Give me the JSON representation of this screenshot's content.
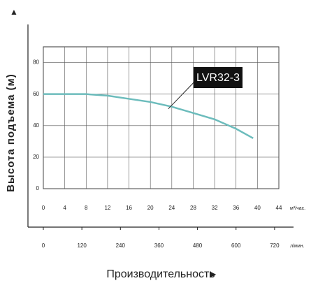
{
  "chart_data": {
    "type": "line",
    "y_label": "Высота подъема (м)",
    "x_label": "Производительность",
    "x_unit": "м³/час.",
    "x2_unit": "л/мин.",
    "xlim": [
      0,
      44
    ],
    "xticks": [
      0,
      4,
      8,
      12,
      16,
      20,
      24,
      28,
      32,
      36,
      40,
      44
    ],
    "x2lim": [
      0,
      733.3
    ],
    "x2ticks": [
      0,
      120,
      240,
      360,
      480,
      600,
      720
    ],
    "ylim": [
      0,
      90
    ],
    "yticks": [
      0,
      20,
      40,
      60,
      80
    ],
    "grid": true,
    "series": [
      {
        "name": "LVR32-3",
        "color": "#6cbcbc",
        "x": [
          0,
          4,
          8,
          12,
          16,
          20,
          24,
          28,
          32,
          36,
          39.2
        ],
        "values": [
          60,
          60,
          60,
          59,
          57,
          55,
          52,
          48,
          44,
          38,
          32
        ]
      }
    ]
  }
}
